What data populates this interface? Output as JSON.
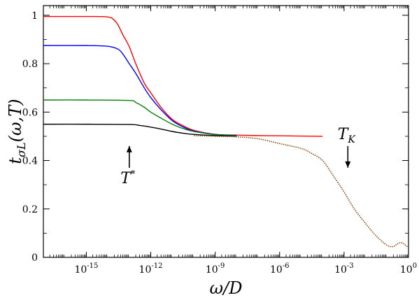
{
  "chart_data": {
    "type": "line",
    "title": "",
    "xlabel": "ω/D",
    "ylabel": "t_σL(ω,T)",
    "x_scale": "log",
    "xlim": [
      1e-17,
      1
    ],
    "ylim": [
      0,
      1.04
    ],
    "grid": false,
    "legend": "none",
    "x_ticks": [
      {
        "value": 1e-15,
        "base": "10",
        "exp": "-15"
      },
      {
        "value": 1e-12,
        "base": "10",
        "exp": "-12"
      },
      {
        "value": 1e-09,
        "base": "10",
        "exp": "-9"
      },
      {
        "value": 1e-06,
        "base": "10",
        "exp": "-6"
      },
      {
        "value": 0.001,
        "base": "10",
        "exp": "-3"
      },
      {
        "value": 1,
        "base": "10",
        "exp": "0"
      }
    ],
    "y_ticks": [
      "0",
      "0.2",
      "0.4",
      "0.6",
      "0.8",
      "1"
    ],
    "y_tick_values": [
      0,
      0.2,
      0.4,
      0.6,
      0.8,
      1
    ],
    "series": [
      {
        "color": "#ff0000",
        "style": "solid",
        "x": [
          1e-17,
          1e-15,
          1e-14,
          2e-14,
          3e-14,
          5e-14,
          1e-13,
          2e-13,
          5e-13,
          1e-12,
          3e-12,
          1e-11,
          3e-11,
          1e-10,
          1e-09,
          1e-08,
          1e-07,
          1e-06,
          1e-05,
          0.0001
        ],
        "y": [
          0.995,
          0.995,
          0.993,
          0.98,
          0.96,
          0.92,
          0.87,
          0.8,
          0.72,
          0.68,
          0.62,
          0.57,
          0.545,
          0.525,
          0.508,
          0.505,
          0.503,
          0.502,
          0.501,
          0.5
        ]
      },
      {
        "color": "#0000ff",
        "style": "solid",
        "x": [
          1e-17,
          1e-15,
          1e-14,
          3e-14,
          5e-14,
          1e-13,
          2e-13,
          5e-13,
          1e-12,
          3e-12,
          1e-11,
          3e-11,
          1e-10,
          1e-09,
          1e-08
        ],
        "y": [
          0.875,
          0.875,
          0.872,
          0.86,
          0.84,
          0.8,
          0.76,
          0.7,
          0.66,
          0.61,
          0.565,
          0.54,
          0.522,
          0.508,
          0.504
        ]
      },
      {
        "color": "#008000",
        "style": "solid",
        "x": [
          1e-17,
          1e-15,
          1e-13,
          2e-13,
          5e-13,
          1e-12,
          3e-12,
          1e-11,
          3e-11,
          1e-10,
          1e-09,
          1e-08
        ],
        "y": [
          0.65,
          0.65,
          0.648,
          0.64,
          0.62,
          0.6,
          0.575,
          0.55,
          0.533,
          0.52,
          0.507,
          0.503
        ]
      },
      {
        "color": "#000000",
        "style": "solid",
        "x": [
          1e-17,
          1e-15,
          1e-13,
          3e-13,
          1e-12,
          3e-12,
          1e-11,
          3e-11,
          1e-10,
          1e-09,
          1e-08
        ],
        "y": [
          0.55,
          0.55,
          0.549,
          0.545,
          0.538,
          0.53,
          0.52,
          0.513,
          0.508,
          0.503,
          0.501
        ]
      },
      {
        "color": "#8b4513",
        "style": "dotted",
        "x": [
          1e-10,
          1e-09,
          1e-08,
          1e-07,
          1e-06,
          1e-05,
          3e-05,
          0.0001,
          0.0003,
          0.001,
          0.003,
          0.01,
          0.03,
          0.1,
          0.2,
          0.3,
          0.5,
          1
        ],
        "y": [
          0.503,
          0.5,
          0.498,
          0.49,
          0.47,
          0.45,
          0.43,
          0.4,
          0.34,
          0.27,
          0.2,
          0.14,
          0.09,
          0.05,
          0.045,
          0.055,
          0.06,
          0.04
        ]
      }
    ],
    "annotations": [
      {
        "text": "T",
        "sup": "*",
        "x": 1e-13,
        "y_arrow_tip": 0.46,
        "y_arrow_base": 0.37,
        "direction": "up"
      },
      {
        "text": "T",
        "sub": "K",
        "x": 0.0015,
        "y_arrow_tip": 0.37,
        "y_arrow_base": 0.46,
        "direction": "down"
      }
    ]
  }
}
